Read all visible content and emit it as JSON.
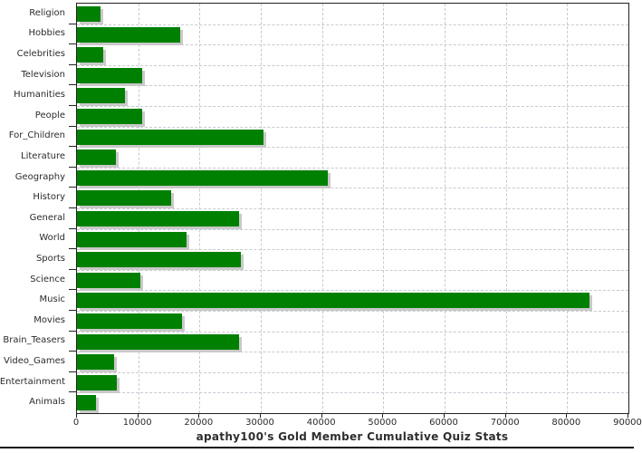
{
  "chart_data": {
    "type": "bar",
    "orientation": "horizontal",
    "title": "apathy100's Gold Member Cumulative Quiz Stats",
    "categories": [
      "Religion",
      "Hobbies",
      "Celebrities",
      "Television",
      "Humanities",
      "People",
      "For_Children",
      "Literature",
      "Geography",
      "History",
      "General",
      "World",
      "Sports",
      "Science",
      "Music",
      "Movies",
      "Brain_Teasers",
      "Video_Games",
      "Entertainment",
      "Animals"
    ],
    "values": [
      3800,
      16800,
      4300,
      10700,
      7900,
      10600,
      30400,
      6400,
      41000,
      15300,
      26400,
      17900,
      26800,
      10300,
      83600,
      17200,
      26500,
      6100,
      6500,
      3100
    ],
    "xlim": [
      0,
      90000
    ],
    "x_ticks": [
      0,
      10000,
      20000,
      30000,
      40000,
      50000,
      60000,
      70000,
      80000,
      90000
    ],
    "xlabel": "",
    "ylabel": "",
    "legend": false,
    "grid": true,
    "bar_color": "#008000",
    "bar_shadow_color": "#c9c9c9",
    "gridline_color": "#c6cad2",
    "axis_color": "#222222",
    "text_color": "#2b2b2b"
  }
}
